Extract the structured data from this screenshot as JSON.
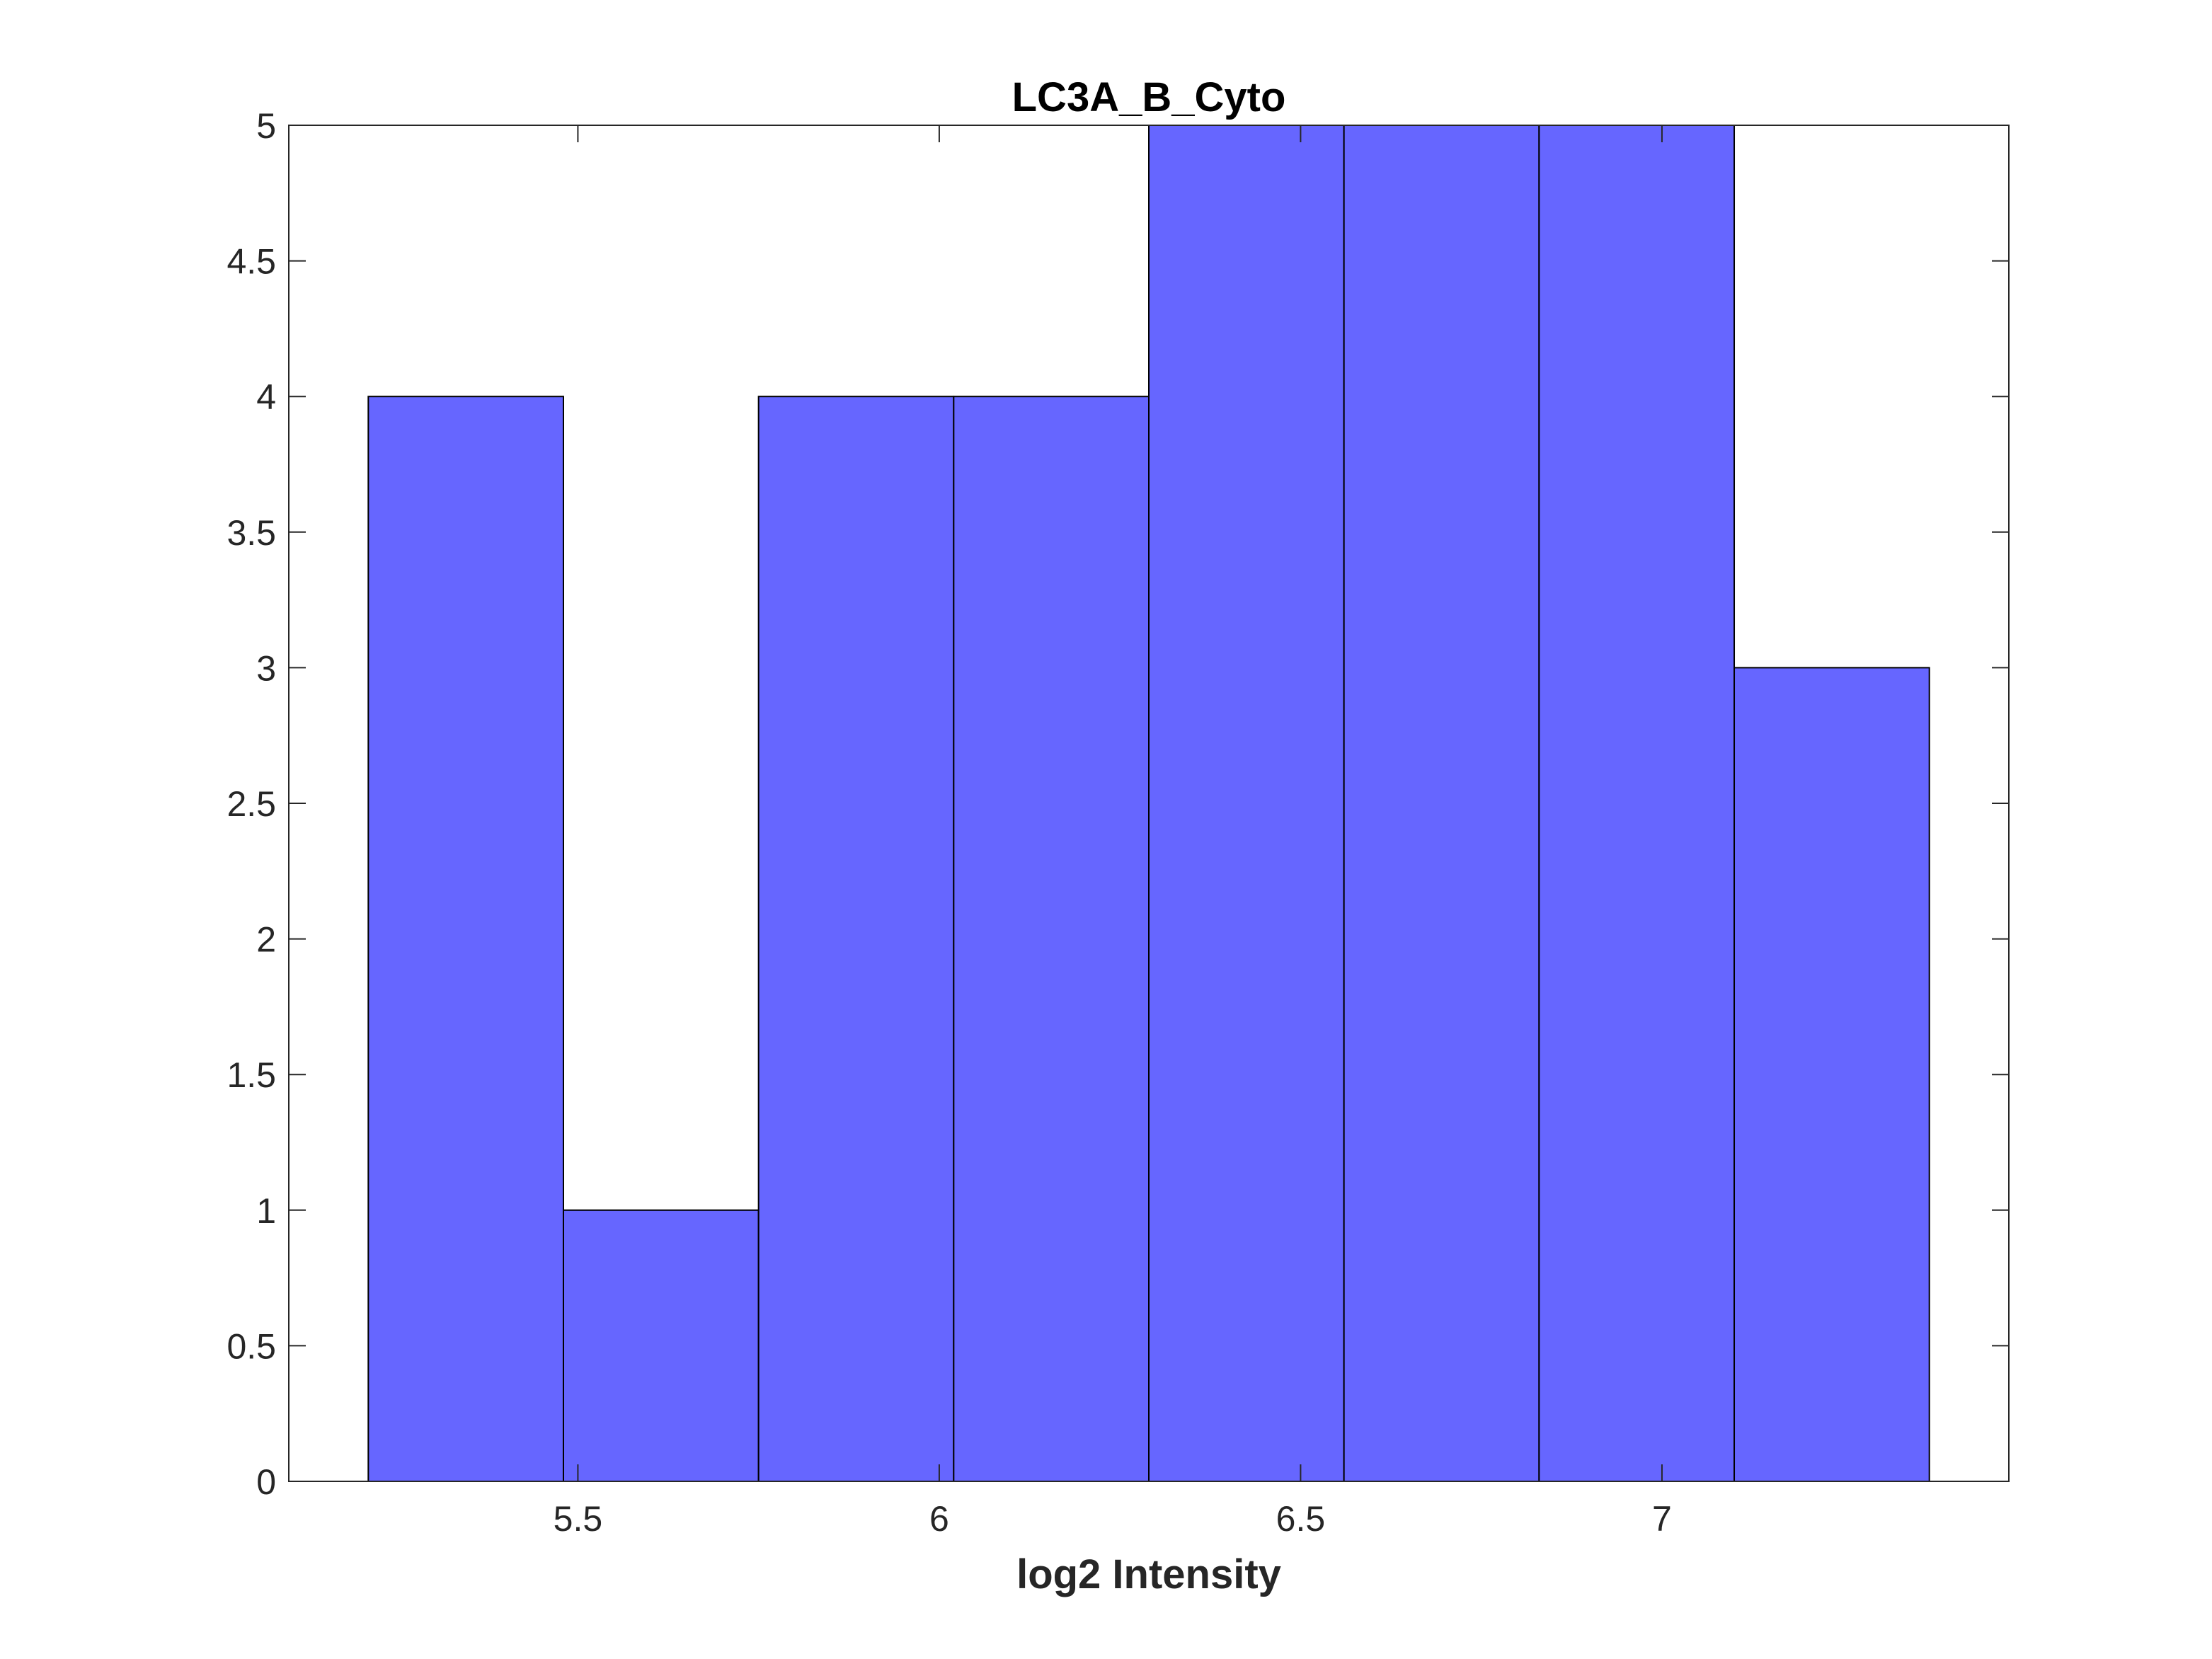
{
  "chart_data": {
    "type": "bar",
    "title": "LC3A_B_Cyto",
    "xlabel": "log2 Intensity",
    "ylabel": "",
    "bin_edges": [
      5.21,
      5.48,
      5.75,
      6.02,
      6.29,
      6.56,
      6.83,
      7.1,
      7.37
    ],
    "values": [
      4,
      1,
      4,
      4,
      5,
      5,
      5,
      3
    ],
    "xlim": [
      5.1,
      7.48
    ],
    "ylim": [
      0,
      5
    ],
    "xticks": [
      5.5,
      6,
      6.5,
      7
    ],
    "xtick_labels": [
      "5.5",
      "6",
      "6.5",
      "7"
    ],
    "yticks": [
      0,
      0.5,
      1,
      1.5,
      2,
      2.5,
      3,
      3.5,
      4,
      4.5,
      5
    ],
    "ytick_labels": [
      "0",
      "0.5",
      "1",
      "1.5",
      "2",
      "2.5",
      "3",
      "3.5",
      "4",
      "4.5",
      "5"
    ],
    "grid": false,
    "bar_color": "#6666ff",
    "edge_color": "#000000",
    "axis_color": "#262626"
  }
}
